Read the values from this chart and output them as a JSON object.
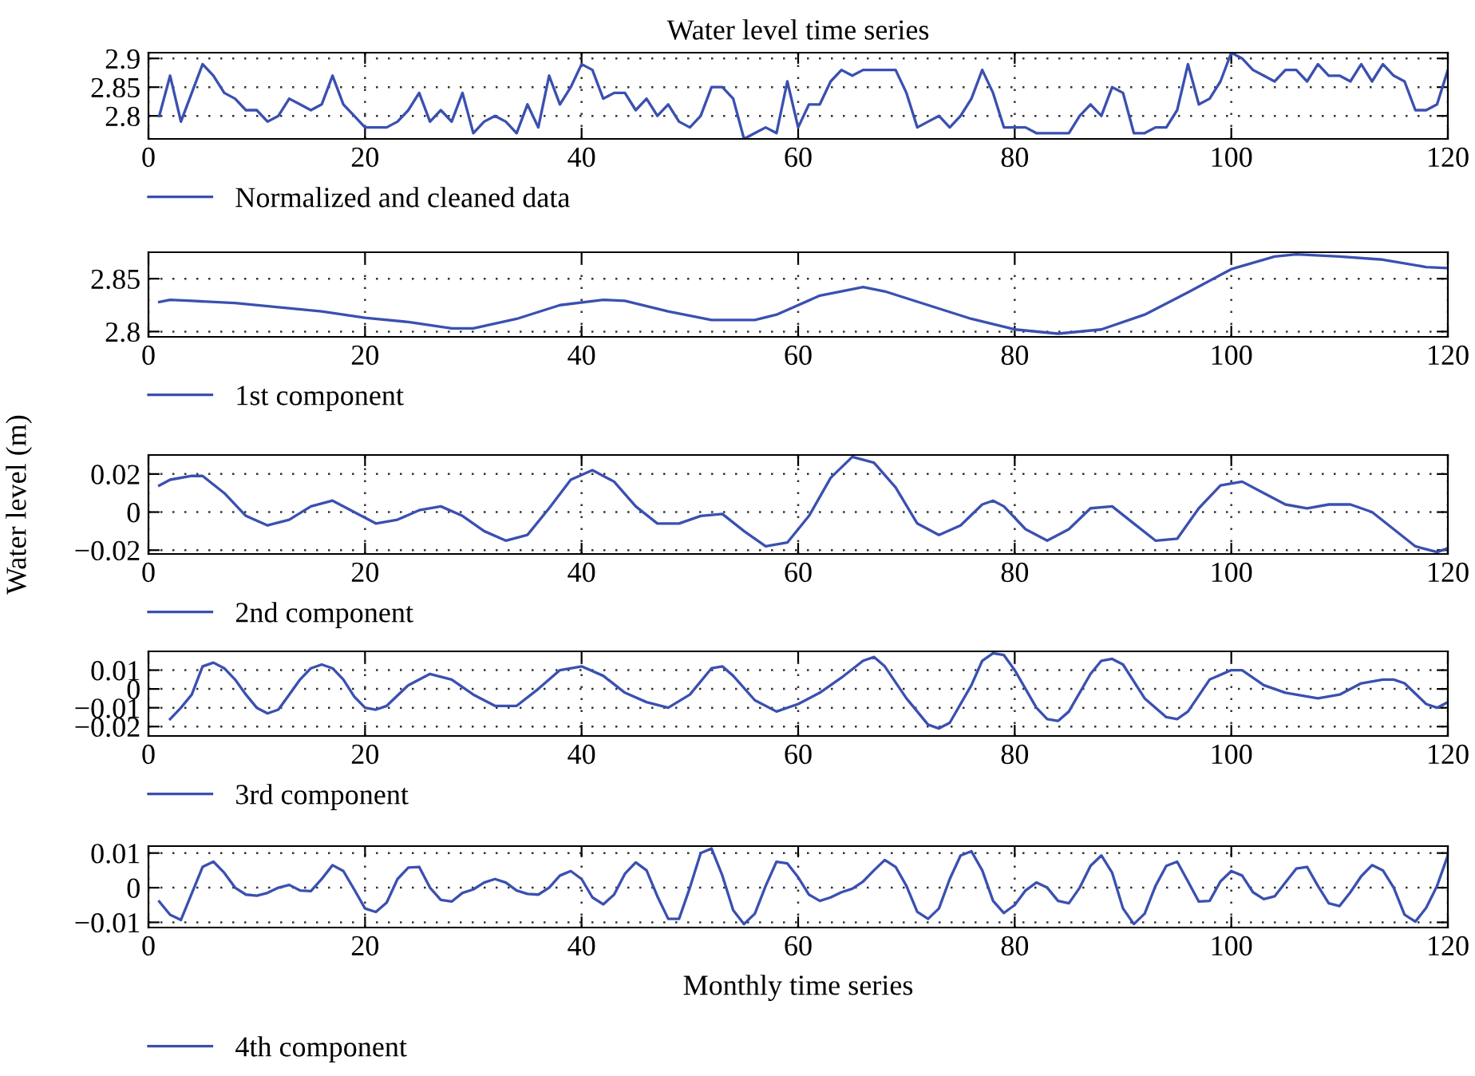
{
  "chart_data": [
    {
      "type": "line",
      "title": "Water level time series",
      "x": [
        1,
        2,
        3,
        4,
        5,
        6,
        7,
        8,
        9,
        10,
        11,
        12,
        13,
        14,
        15,
        16,
        17,
        18,
        19,
        20,
        21,
        22,
        23,
        24,
        25,
        26,
        27,
        28,
        29,
        30,
        31,
        32,
        33,
        34,
        35,
        36,
        37,
        38,
        39,
        40,
        41,
        42,
        43,
        44,
        45,
        46,
        47,
        48,
        49,
        50,
        51,
        52,
        53,
        54,
        55,
        56,
        57,
        58,
        59,
        60,
        61,
        62,
        63,
        64,
        65,
        66,
        67,
        68,
        69,
        70,
        71,
        72,
        73,
        74,
        75,
        76,
        77,
        78,
        79,
        80,
        81,
        82,
        83,
        84,
        85,
        86,
        87,
        88,
        89,
        90,
        91,
        92,
        93,
        94,
        95,
        96,
        97,
        98,
        99,
        100,
        101,
        102,
        103,
        104,
        105,
        106,
        107,
        108,
        109,
        110,
        111,
        112,
        113,
        114,
        115,
        116,
        117,
        118,
        119,
        120
      ],
      "xlim": [
        0,
        120
      ],
      "xticks": [
        0,
        20,
        40,
        60,
        80,
        100,
        120
      ],
      "ylim": [
        2.76,
        2.91
      ],
      "yticks": [
        2.8,
        2.85,
        2.9
      ],
      "grid": true,
      "legend": "bottom",
      "series": [
        {
          "name": "Normalized and cleaned data",
          "color": "#3a50b0",
          "values": [
            2.8,
            2.87,
            2.79,
            2.84,
            2.89,
            2.87,
            2.84,
            2.83,
            2.81,
            2.81,
            2.79,
            2.8,
            2.83,
            2.82,
            2.81,
            2.82,
            2.87,
            2.82,
            2.8,
            2.78,
            2.78,
            2.78,
            2.79,
            2.81,
            2.84,
            2.79,
            2.81,
            2.79,
            2.84,
            2.77,
            2.79,
            2.8,
            2.79,
            2.77,
            2.82,
            2.78,
            2.87,
            2.82,
            2.85,
            2.89,
            2.88,
            2.83,
            2.84,
            2.84,
            2.81,
            2.83,
            2.8,
            2.82,
            2.79,
            2.78,
            2.8,
            2.85,
            2.85,
            2.83,
            2.76,
            2.77,
            2.78,
            2.77,
            2.86,
            2.78,
            2.82,
            2.82,
            2.86,
            2.88,
            2.87,
            2.88,
            2.88,
            2.88,
            2.88,
            2.84,
            2.78,
            2.79,
            2.8,
            2.78,
            2.8,
            2.83,
            2.88,
            2.84,
            2.78,
            2.78,
            2.78,
            2.77,
            2.77,
            2.77,
            2.77,
            2.8,
            2.82,
            2.8,
            2.85,
            2.84,
            2.77,
            2.77,
            2.78,
            2.78,
            2.81,
            2.89,
            2.82,
            2.83,
            2.86,
            2.91,
            2.9,
            2.88,
            2.87,
            2.86,
            2.88,
            2.88,
            2.86,
            2.89,
            2.87,
            2.87,
            2.86,
            2.89,
            2.86,
            2.89,
            2.87,
            2.86,
            2.81,
            2.81,
            2.82,
            2.88
          ]
        }
      ]
    },
    {
      "type": "line",
      "x": [
        1,
        2,
        4,
        8,
        12,
        16,
        20,
        24,
        28,
        30,
        34,
        38,
        42,
        44,
        48,
        52,
        56,
        58,
        62,
        66,
        68,
        72,
        76,
        80,
        84,
        88,
        92,
        96,
        100,
        104,
        106,
        110,
        114,
        118,
        120
      ],
      "xlim": [
        0,
        120
      ],
      "xticks": [
        0,
        20,
        40,
        60,
        80,
        100,
        120
      ],
      "ylim": [
        2.795,
        2.875
      ],
      "yticks": [
        2.8,
        2.85
      ],
      "grid": true,
      "legend": "bottom",
      "series": [
        {
          "name": "1st component",
          "color": "#3a50b0",
          "values": [
            2.828,
            2.83,
            2.829,
            2.827,
            2.823,
            2.819,
            2.813,
            2.809,
            2.803,
            2.803,
            2.812,
            2.825,
            2.83,
            2.829,
            2.819,
            2.811,
            2.811,
            2.816,
            2.834,
            2.842,
            2.838,
            2.825,
            2.812,
            2.802,
            2.798,
            2.802,
            2.816,
            2.837,
            2.859,
            2.871,
            2.873,
            2.871,
            2.868,
            2.861,
            2.86
          ]
        }
      ]
    },
    {
      "type": "line",
      "ylabel": "Water level (m)",
      "x": [
        1,
        2,
        4,
        5,
        7,
        9,
        11,
        13,
        15,
        17,
        19,
        21,
        23,
        25,
        27,
        29,
        31,
        33,
        35,
        37,
        39,
        41,
        43,
        45,
        47,
        49,
        51,
        53,
        55,
        57,
        59,
        61,
        63,
        65,
        67,
        69,
        71,
        73,
        75,
        77,
        78,
        79,
        81,
        83,
        85,
        87,
        89,
        91,
        93,
        95,
        97,
        99,
        101,
        103,
        105,
        107,
        109,
        111,
        113,
        115,
        117,
        119,
        120
      ],
      "xlim": [
        0,
        120
      ],
      "xticks": [
        0,
        20,
        40,
        60,
        80,
        100,
        120
      ],
      "ylim": [
        -0.022,
        0.03
      ],
      "yticks": [
        -0.02,
        0,
        0.02
      ],
      "grid": true,
      "legend": "bottom",
      "series": [
        {
          "name": "2nd component",
          "color": "#3a50b0",
          "values": [
            0.014,
            0.017,
            0.019,
            0.019,
            0.01,
            -0.002,
            -0.007,
            -0.004,
            0.003,
            0.006,
            0,
            -0.006,
            -0.004,
            0.001,
            0.003,
            -0.002,
            -0.01,
            -0.015,
            -0.012,
            0.002,
            0.017,
            0.022,
            0.016,
            0.003,
            -0.006,
            -0.006,
            -0.002,
            -0.001,
            -0.01,
            -0.018,
            -0.016,
            -0.002,
            0.018,
            0.029,
            0.026,
            0.013,
            -0.006,
            -0.012,
            -0.007,
            0.004,
            0.006,
            0.003,
            -0.009,
            -0.015,
            -0.009,
            0.002,
            0.003,
            -0.006,
            -0.015,
            -0.014,
            0.002,
            0.014,
            0.016,
            0.01,
            0.004,
            0.002,
            0.004,
            0.004,
            0,
            -0.009,
            -0.018,
            -0.021,
            -0.019
          ]
        }
      ]
    },
    {
      "type": "line",
      "x": [
        2,
        3,
        4,
        5,
        6,
        7,
        8,
        9,
        10,
        11,
        12,
        13,
        14,
        15,
        16,
        17,
        18,
        19,
        20,
        21,
        22,
        24,
        26,
        28,
        30,
        32,
        34,
        36,
        38,
        40,
        42,
        44,
        46,
        48,
        50,
        52,
        53,
        54,
        56,
        58,
        60,
        62,
        64,
        66,
        67,
        68,
        70,
        72,
        73,
        74,
        76,
        77,
        78,
        79,
        80,
        82,
        83,
        84,
        85,
        87,
        88,
        89,
        90,
        92,
        94,
        95,
        96,
        98,
        100,
        101,
        103,
        105,
        108,
        110,
        112,
        114,
        115,
        116,
        118,
        119,
        120
      ],
      "xlim": [
        0,
        120
      ],
      "xticks": [
        0,
        20,
        40,
        60,
        80,
        100,
        120
      ],
      "ylim": [
        -0.025,
        0.02
      ],
      "yticks": [
        -0.02,
        -0.01,
        0,
        0.01
      ],
      "grid": true,
      "legend": "bottom",
      "series": [
        {
          "name": "3rd component",
          "color": "#3a50b0",
          "values": [
            -0.016,
            -0.01,
            -0.003,
            0.012,
            0.014,
            0.011,
            0.005,
            -0.003,
            -0.01,
            -0.013,
            -0.011,
            -0.003,
            0.005,
            0.011,
            0.013,
            0.011,
            0.005,
            -0.004,
            -0.01,
            -0.011,
            -0.009,
            0.002,
            0.008,
            0.005,
            -0.003,
            -0.009,
            -0.009,
            0,
            0.01,
            0.012,
            0.007,
            -0.002,
            -0.007,
            -0.01,
            -0.003,
            0.011,
            0.012,
            0.007,
            -0.006,
            -0.012,
            -0.008,
            -0.002,
            0.006,
            0.015,
            0.017,
            0.012,
            -0.005,
            -0.019,
            -0.021,
            -0.018,
            0.002,
            0.015,
            0.019,
            0.018,
            0.01,
            -0.01,
            -0.016,
            -0.017,
            -0.012,
            0.008,
            0.015,
            0.016,
            0.013,
            -0.005,
            -0.015,
            -0.016,
            -0.012,
            0.005,
            0.01,
            0.01,
            0.002,
            -0.002,
            -0.005,
            -0.003,
            0.003,
            0.005,
            0.005,
            0.003,
            -0.008,
            -0.01,
            -0.007
          ]
        }
      ]
    },
    {
      "type": "line",
      "xlabel": "Monthly time series",
      "x": [
        1,
        2,
        3,
        5,
        6,
        7,
        8,
        9,
        10,
        11,
        12,
        13,
        14,
        15,
        16,
        17,
        18,
        19,
        20,
        21,
        22,
        23,
        24,
        25,
        26,
        27,
        28,
        29,
        30,
        31,
        32,
        33,
        34,
        35,
        36,
        37,
        38,
        39,
        40,
        41,
        42,
        43,
        44,
        45,
        46,
        47,
        48,
        49,
        50,
        51,
        52,
        53,
        54,
        55,
        56,
        57,
        58,
        59,
        60,
        61,
        62,
        63,
        64,
        65,
        66,
        67,
        68,
        69,
        70,
        71,
        72,
        73,
        74,
        75,
        76,
        77,
        78,
        79,
        80,
        81,
        82,
        83,
        84,
        85,
        86,
        87,
        88,
        89,
        90,
        91,
        92,
        93,
        94,
        95,
        96,
        97,
        98,
        99,
        100,
        101,
        102,
        103,
        104,
        105,
        106,
        107,
        108,
        109,
        110,
        111,
        112,
        113,
        114,
        115,
        116,
        117,
        118,
        119,
        120
      ],
      "xlim": [
        0,
        120
      ],
      "xticks": [
        0,
        20,
        40,
        60,
        80,
        100,
        120
      ],
      "ylim": [
        -0.0115,
        0.012
      ],
      "yticks": [
        -0.01,
        0,
        0.01
      ],
      "grid": true,
      "legend": "bottom",
      "series": [
        {
          "name": "4th component",
          "color": "#3a50b0",
          "values": [
            -0.004,
            -0.0078,
            -0.0093,
            0.006,
            0.0075,
            0.0043,
            0,
            -0.002,
            -0.0023,
            -0.0015,
            0,
            0.0008,
            -0.0008,
            -0.001,
            0.0025,
            0.0065,
            0.0048,
            -0.0005,
            -0.006,
            -0.007,
            -0.0043,
            0.0025,
            0.0058,
            0.006,
            0,
            -0.0035,
            -0.004,
            -0.0015,
            -0.0005,
            0.0015,
            0.0025,
            0.0015,
            -0.0008,
            -0.0018,
            -0.002,
            0,
            0.0035,
            0.0048,
            0.0025,
            -0.0028,
            -0.0048,
            -0.002,
            0.004,
            0.0073,
            0.005,
            -0.0025,
            -0.009,
            -0.009,
            0,
            0.01,
            0.0113,
            0.0035,
            -0.0065,
            -0.0105,
            -0.0075,
            0.0005,
            0.0075,
            0.007,
            0.003,
            -0.002,
            -0.0038,
            -0.0028,
            -0.0013,
            -0.0003,
            0.0018,
            0.005,
            0.008,
            0.006,
            0.0005,
            -0.007,
            -0.009,
            -0.006,
            0.0025,
            0.0093,
            0.0105,
            0.005,
            -0.0038,
            -0.0073,
            -0.005,
            -0.0008,
            0.0015,
            0,
            -0.0038,
            -0.0045,
            0,
            0.0063,
            0.0093,
            0.0043,
            -0.006,
            -0.0105,
            -0.0075,
            0.0005,
            0.0063,
            0.0075,
            0.0018,
            -0.004,
            -0.0038,
            0.0018,
            0.0048,
            0.0035,
            -0.0013,
            -0.0033,
            -0.0025,
            0.0015,
            0.0055,
            0.006,
            0.0005,
            -0.0045,
            -0.0053,
            -0.0013,
            0.0033,
            0.0065,
            0.005,
            0,
            -0.0078,
            -0.0098,
            -0.0058,
            0.0005,
            0.0093
          ]
        }
      ]
    }
  ]
}
